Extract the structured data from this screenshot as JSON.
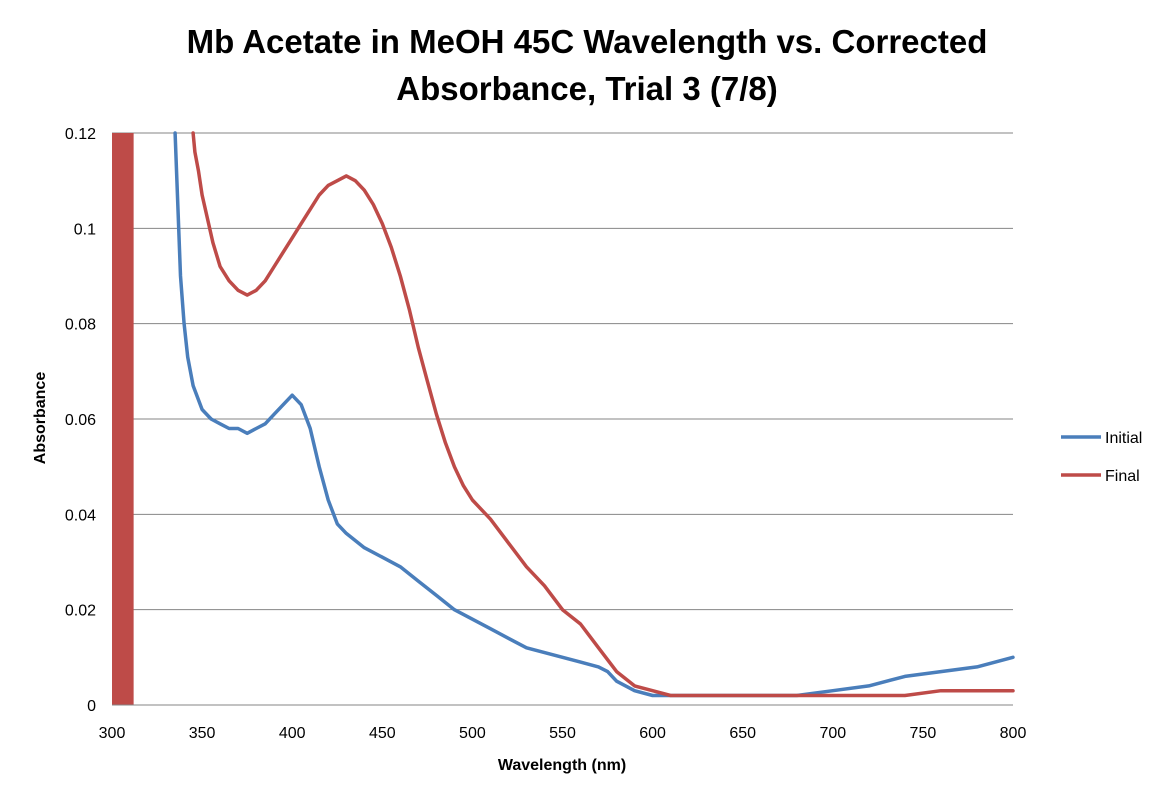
{
  "chart_data": {
    "type": "line",
    "title_line1": "Mb Acetate in MeOH 45C Wavelength vs. Corrected",
    "title_line2": "Absorbance, Trial 3 (7/8)",
    "xlabel": "Wavelength (nm)",
    "ylabel": "Absorbance",
    "xlim": [
      300,
      800
    ],
    "ylim": [
      0,
      0.12
    ],
    "x_ticks": [
      300,
      350,
      400,
      450,
      500,
      550,
      600,
      650,
      700,
      750,
      800
    ],
    "y_ticks": [
      0,
      0.02,
      0.04,
      0.06,
      0.08,
      0.1,
      0.12
    ],
    "y_tick_labels": [
      "0",
      "0.02",
      "0.04",
      "0.06",
      "0.08",
      "0.1",
      "0.12"
    ],
    "grid": "horizontal major gridlines",
    "legend_position": "right",
    "series": [
      {
        "name": "Initial",
        "color": "#4a7ebb",
        "x": [
          335,
          336,
          337,
          338,
          340,
          342,
          345,
          350,
          355,
          360,
          365,
          370,
          375,
          380,
          385,
          390,
          395,
          400,
          405,
          410,
          415,
          420,
          425,
          430,
          440,
          450,
          460,
          470,
          480,
          490,
          500,
          510,
          520,
          530,
          540,
          550,
          560,
          570,
          575,
          580,
          590,
          600,
          620,
          640,
          660,
          680,
          700,
          720,
          740,
          760,
          780,
          800
        ],
        "y": [
          0.12,
          0.11,
          0.1,
          0.09,
          0.08,
          0.073,
          0.067,
          0.062,
          0.06,
          0.059,
          0.058,
          0.058,
          0.057,
          0.058,
          0.059,
          0.061,
          0.063,
          0.065,
          0.063,
          0.058,
          0.05,
          0.043,
          0.038,
          0.036,
          0.033,
          0.031,
          0.029,
          0.026,
          0.023,
          0.02,
          0.018,
          0.016,
          0.014,
          0.012,
          0.011,
          0.01,
          0.009,
          0.008,
          0.007,
          0.005,
          0.003,
          0.002,
          0.002,
          0.002,
          0.002,
          0.002,
          0.003,
          0.004,
          0.006,
          0.007,
          0.008,
          0.01
        ]
      },
      {
        "name": "Final",
        "color": "#be4b48",
        "x": [
          345,
          346,
          348,
          350,
          353,
          356,
          360,
          365,
          370,
          375,
          380,
          385,
          390,
          395,
          400,
          405,
          410,
          415,
          420,
          425,
          430,
          435,
          440,
          445,
          450,
          455,
          460,
          465,
          470,
          475,
          480,
          485,
          490,
          495,
          500,
          510,
          520,
          530,
          540,
          550,
          560,
          570,
          580,
          590,
          600,
          610,
          620,
          640,
          660,
          680,
          700,
          720,
          740,
          760,
          780,
          800
        ],
        "y": [
          0.12,
          0.116,
          0.112,
          0.107,
          0.102,
          0.097,
          0.092,
          0.089,
          0.087,
          0.086,
          0.087,
          0.089,
          0.092,
          0.095,
          0.098,
          0.101,
          0.104,
          0.107,
          0.109,
          0.11,
          0.111,
          0.11,
          0.108,
          0.105,
          0.101,
          0.096,
          0.09,
          0.083,
          0.075,
          0.068,
          0.061,
          0.055,
          0.05,
          0.046,
          0.043,
          0.039,
          0.034,
          0.029,
          0.025,
          0.02,
          0.017,
          0.012,
          0.007,
          0.004,
          0.003,
          0.002,
          0.002,
          0.002,
          0.002,
          0.002,
          0.002,
          0.002,
          0.002,
          0.003,
          0.003,
          0.003
        ]
      }
    ],
    "annotations": {
      "red_band_x": [
        300,
        312
      ]
    }
  }
}
